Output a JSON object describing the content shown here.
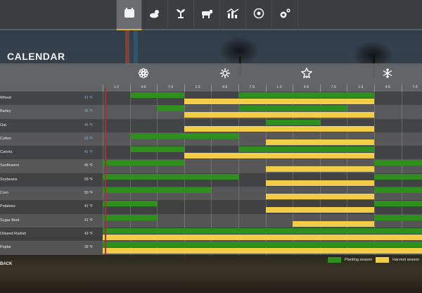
{
  "nav": {
    "items": [
      {
        "icon": "calendar-icon",
        "active": true
      },
      {
        "icon": "weather-icon",
        "active": false
      },
      {
        "icon": "crop-sprout-icon",
        "active": false
      },
      {
        "icon": "livestock-cow-icon",
        "active": false
      },
      {
        "icon": "statistics-chart-icon",
        "active": false
      },
      {
        "icon": "finance-cycle-icon",
        "active": false
      },
      {
        "icon": "settings-gears-icon",
        "active": false
      }
    ]
  },
  "page": {
    "title": "CALENDAR"
  },
  "seasons": [
    {
      "name": "spring",
      "icon": "spring-flower-icon",
      "center_col": 1
    },
    {
      "name": "summer",
      "icon": "summer-sun-icon",
      "center_col": 4
    },
    {
      "name": "autumn",
      "icon": "autumn-leaf-icon",
      "center_col": 7
    },
    {
      "name": "winter",
      "icon": "winter-snowflake-icon",
      "center_col": 10
    }
  ],
  "columns": [
    "1-3",
    "4-6",
    "7-9",
    "1-3",
    "4-6",
    "7-9",
    "1-3",
    "4-6",
    "7-9",
    "1-3",
    "4-6",
    "7-9"
  ],
  "crops": [
    {
      "name": "Wheat",
      "temp": "41 °F",
      "temp_blue": true,
      "plant": [
        [
          1,
          3
        ],
        [
          5,
          10
        ]
      ],
      "harvest": [
        [
          3,
          10
        ]
      ]
    },
    {
      "name": "Barley",
      "temp": "46 °F",
      "temp_blue": true,
      "plant": [
        [
          2,
          3
        ],
        [
          5,
          9
        ]
      ],
      "harvest": [
        [
          3,
          10
        ]
      ]
    },
    {
      "name": "Oat",
      "temp": "46 °F",
      "temp_blue": true,
      "plant": [
        [
          6,
          8
        ]
      ],
      "harvest": [
        [
          3,
          10
        ]
      ]
    },
    {
      "name": "Cotton",
      "temp": "59 °F",
      "temp_blue": true,
      "plant": [
        [
          1,
          5
        ]
      ],
      "harvest": [
        [
          6,
          10
        ]
      ]
    },
    {
      "name": "Canola",
      "temp": "41 °F",
      "temp_blue": true,
      "plant": [
        [
          1,
          3
        ],
        [
          5,
          10
        ]
      ],
      "harvest": [
        [
          3,
          10
        ]
      ]
    },
    {
      "name": "Sunflowers",
      "temp": "45 °F",
      "temp_blue": false,
      "plant": [
        [
          0,
          3
        ],
        [
          10,
          12
        ]
      ],
      "harvest": [
        [
          6,
          10
        ]
      ]
    },
    {
      "name": "Soybeans",
      "temp": "50 °F",
      "temp_blue": false,
      "plant": [
        [
          0,
          5
        ],
        [
          10,
          12
        ]
      ],
      "harvest": [
        [
          6,
          10
        ]
      ]
    },
    {
      "name": "Corn",
      "temp": "50 °F",
      "temp_blue": false,
      "plant": [
        [
          0,
          4
        ],
        [
          10,
          12
        ]
      ],
      "harvest": [
        [
          6,
          10
        ]
      ]
    },
    {
      "name": "Potatoes",
      "temp": "41 °F",
      "temp_blue": false,
      "plant": [
        [
          0,
          2
        ],
        [
          10,
          12
        ]
      ],
      "harvest": [
        [
          6,
          10
        ]
      ]
    },
    {
      "name": "Sugar Beet",
      "temp": "41 °F",
      "temp_blue": false,
      "plant": [
        [
          0,
          2
        ],
        [
          10,
          12
        ]
      ],
      "harvest": [
        [
          7,
          10
        ]
      ]
    },
    {
      "name": "Oilseed Radish",
      "temp": "43 °F",
      "temp_blue": false,
      "plant": [
        [
          0,
          12
        ]
      ],
      "harvest": [
        [
          0,
          12
        ]
      ]
    },
    {
      "name": "Poplar",
      "temp": "39 °F",
      "temp_blue": false,
      "plant": [
        [
          0,
          12
        ]
      ],
      "harvest": [
        [
          0,
          12
        ]
      ]
    }
  ],
  "footer": {
    "back_label": "BACK",
    "legend": {
      "planting": "Planting season",
      "harvest": "Harvest season"
    }
  },
  "colors": {
    "planting": "#2f8f1e",
    "harvest": "#f1cd48",
    "today_marker": "#b8283a",
    "active_tab_accent": "#d9b14a"
  },
  "chart_data": {
    "type": "table",
    "title": "CALENDAR",
    "x_categories": [
      "Spring 1-3",
      "Spring 4-6",
      "Spring 7-9",
      "Summer 1-3",
      "Summer 4-6",
      "Summer 7-9",
      "Autumn 1-3",
      "Autumn 4-6",
      "Autumn 7-9",
      "Winter 1-3",
      "Winter 4-6",
      "Winter 7-9"
    ],
    "series": [
      {
        "name": "Planting season",
        "color": "#2f8f1e"
      },
      {
        "name": "Harvest season",
        "color": "#f1cd48"
      }
    ],
    "legend_position": "bottom-right"
  }
}
